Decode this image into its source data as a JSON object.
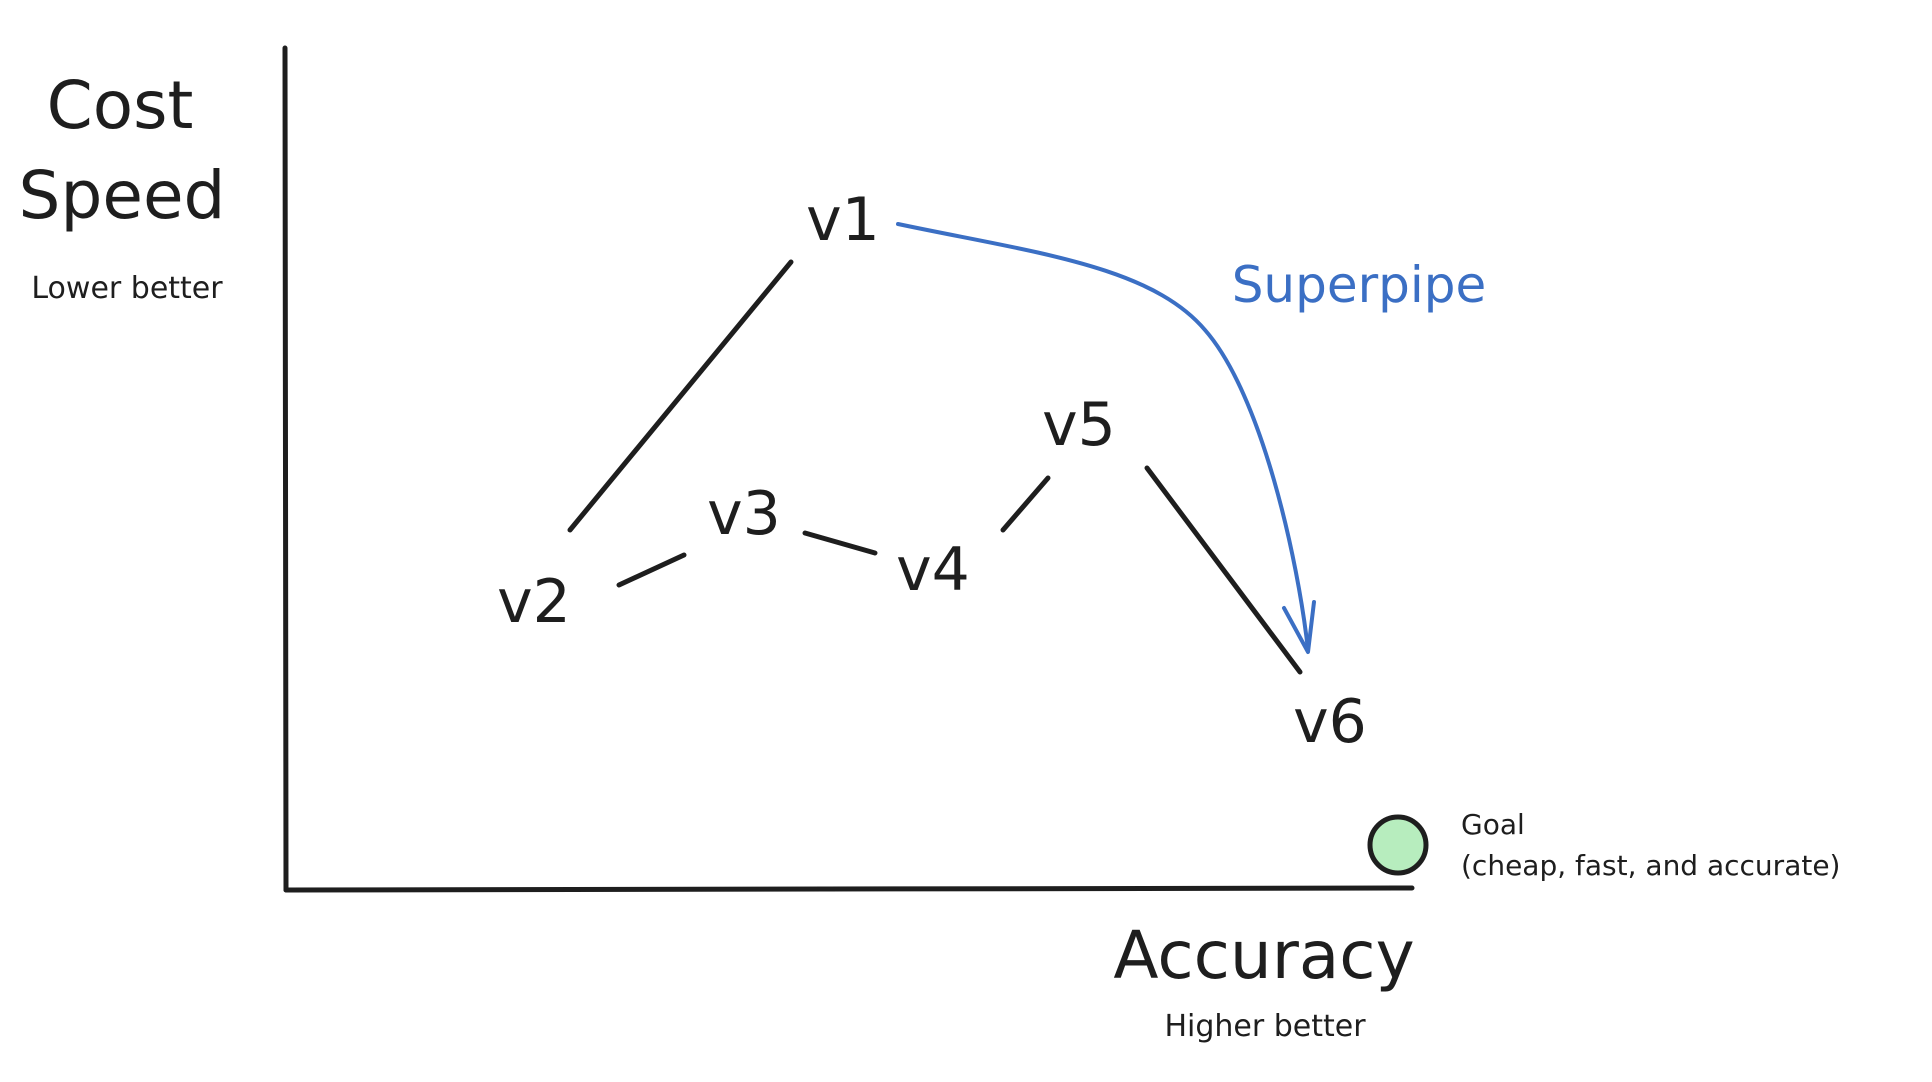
{
  "y_axis": {
    "title_lines": [
      "Cost",
      "Speed"
    ],
    "note": "Lower better"
  },
  "x_axis": {
    "title": "Accuracy",
    "note": "Higher better"
  },
  "versions": [
    {
      "id": "v1",
      "label": "v1"
    },
    {
      "id": "v2",
      "label": "v2"
    },
    {
      "id": "v3",
      "label": "v3"
    },
    {
      "id": "v4",
      "label": "v4"
    },
    {
      "id": "v5",
      "label": "v5"
    },
    {
      "id": "v6",
      "label": "v6"
    }
  ],
  "connections": [
    {
      "from": "v2",
      "to": "v1"
    },
    {
      "from": "v2",
      "to": "v3"
    },
    {
      "from": "v3",
      "to": "v4"
    },
    {
      "from": "v4",
      "to": "v5"
    },
    {
      "from": "v5",
      "to": "v6"
    }
  ],
  "superpipe": {
    "label": "Superpipe",
    "from": "v1",
    "to": "v6",
    "color": "#3b6fc4"
  },
  "goal": {
    "title": "Goal",
    "detail": "(cheap, fast, and accurate)",
    "marker_color": "#b7edbe"
  }
}
